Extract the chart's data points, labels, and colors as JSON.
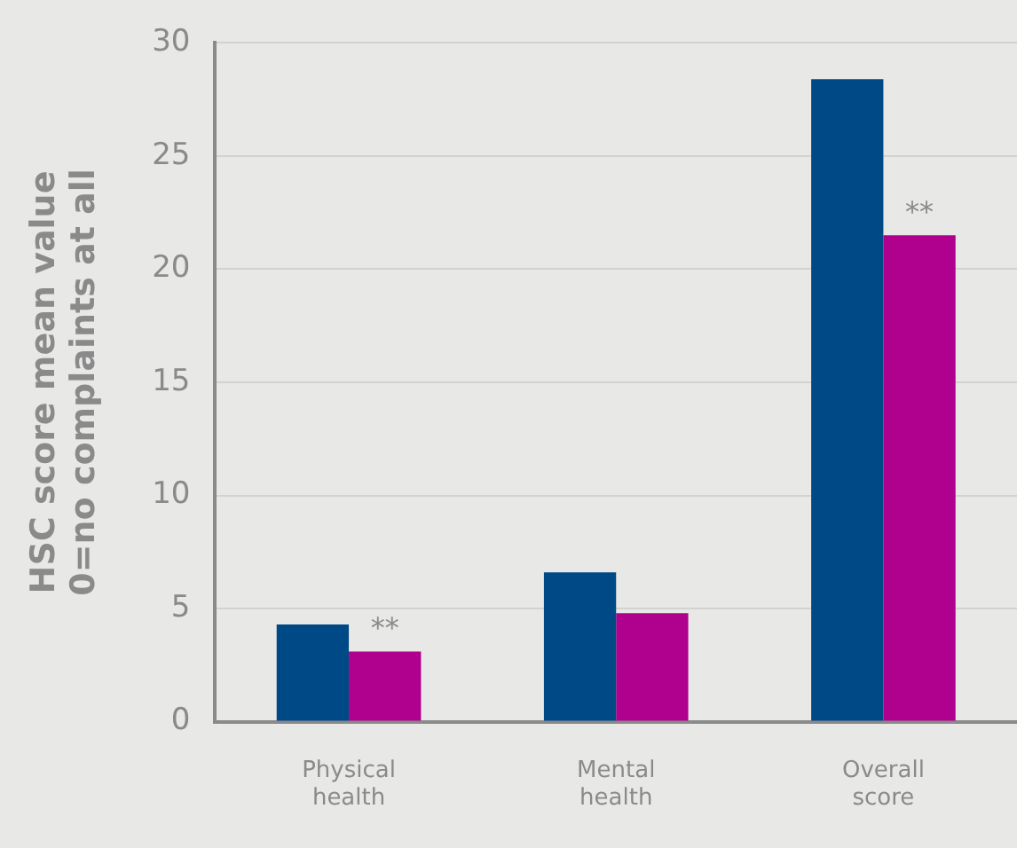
{
  "chart_data": {
    "type": "bar",
    "ylabel": "HSC score mean value\n0=no complaints at all",
    "categories": [
      "Physical health",
      "Mental health",
      "Overall score"
    ],
    "series": [
      {
        "color": "#004987",
        "values": [
          4.3,
          6.6,
          28.4
        ]
      },
      {
        "color": "#b0008e",
        "values": [
          3.1,
          4.8,
          21.5
        ]
      }
    ],
    "ylim": [
      0,
      30
    ],
    "yticks": [
      0,
      5,
      10,
      15,
      20,
      25,
      30
    ],
    "grid": "y",
    "legend": false,
    "annotations": [
      {
        "text": "**",
        "x": "Physical health",
        "y": 3.1
      },
      {
        "text": "**",
        "x": "Overall score",
        "y": 21.5
      }
    ]
  }
}
